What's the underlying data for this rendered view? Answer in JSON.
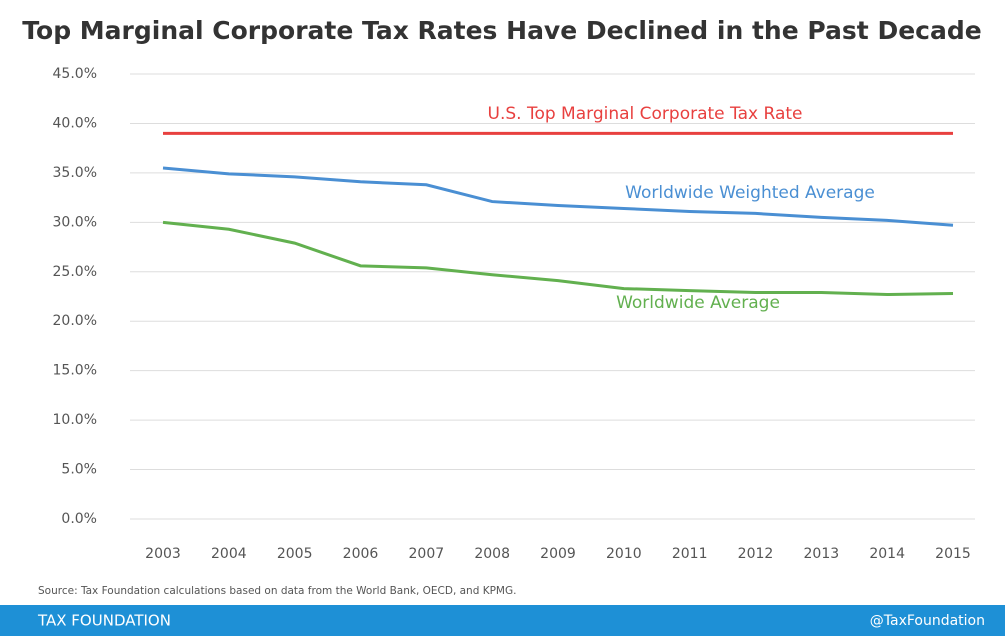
{
  "chart_data": {
    "type": "line",
    "title": "Top Marginal Corporate Tax Rates Have Declined in the Past Decade",
    "categories": [
      "2003",
      "2004",
      "2005",
      "2006",
      "2007",
      "2008",
      "2009",
      "2010",
      "2011",
      "2012",
      "2013",
      "2014",
      "2015"
    ],
    "series": [
      {
        "name": "U.S. Top Marginal Corporate Tax Rate",
        "color": "#e8403f",
        "values": [
          39,
          39,
          39,
          39,
          39,
          39,
          39,
          39,
          39,
          39,
          39,
          39,
          39
        ]
      },
      {
        "name": "Worldwide Weighted Average",
        "color": "#4a8fd3",
        "values": [
          35.5,
          34.9,
          34.6,
          34.1,
          33.8,
          32.1,
          31.7,
          31.4,
          31.1,
          30.9,
          30.5,
          30.2,
          29.7
        ]
      },
      {
        "name": "Worldwide Average",
        "color": "#62b04f",
        "values": [
          30.0,
          29.3,
          27.9,
          25.6,
          25.4,
          24.7,
          24.1,
          23.3,
          23.1,
          22.9,
          22.9,
          22.7,
          22.8
        ]
      }
    ],
    "ylim": [
      0,
      45
    ],
    "yticks": [
      {
        "value": 0,
        "label": "0.0%"
      },
      {
        "value": 5,
        "label": "5.0%"
      },
      {
        "value": 10,
        "label": "10.0%"
      },
      {
        "value": 15,
        "label": "15.0%"
      },
      {
        "value": 20,
        "label": "20.0%"
      },
      {
        "value": 25,
        "label": "25.0%"
      },
      {
        "value": 30,
        "label": "30.0%"
      },
      {
        "value": 35,
        "label": "35.0%"
      },
      {
        "value": 40,
        "label": "40.0%"
      },
      {
        "value": 45,
        "label": "45.0%"
      }
    ],
    "grid": true,
    "source": "Source: Tax Foundation calculations based on data from the World Bank, OECD, and KPMG."
  },
  "footer": {
    "left": "TAX FOUNDATION",
    "right": "@TaxFoundation"
  }
}
